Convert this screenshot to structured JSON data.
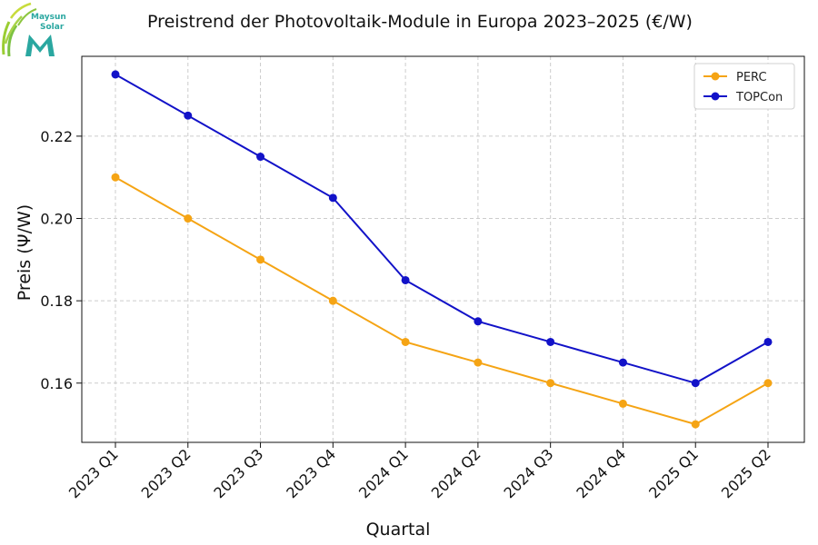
{
  "logo": {
    "line1": "Maysun",
    "line2": "Solar"
  },
  "chart_data": {
    "type": "line",
    "title": "Preistrend der Photovoltaik-Module in Europa 2023–2025 (€/W)",
    "xlabel": "Quartal",
    "ylabel": "Preis (Ψ/W)",
    "categories": [
      "2023 Q1",
      "2023 Q2",
      "2023 Q3",
      "2023 Q4",
      "2024 Q1",
      "2024 Q2",
      "2024 Q3",
      "2024 Q4",
      "2025 Q1",
      "2025 Q2"
    ],
    "series": [
      {
        "name": "PERC",
        "color": "#f5a414",
        "values": [
          0.21,
          0.2,
          0.19,
          0.18,
          0.17,
          0.165,
          0.16,
          0.155,
          0.15,
          0.16
        ]
      },
      {
        "name": "TOPCon",
        "color": "#1212c8",
        "values": [
          0.235,
          0.225,
          0.215,
          0.205,
          0.185,
          0.175,
          0.17,
          0.165,
          0.16,
          0.17
        ]
      }
    ],
    "ylim": [
      0.1456,
      0.2394
    ],
    "yticks": [
      "0.16",
      "0.18",
      "0.20",
      "0.22"
    ],
    "grid": true,
    "legend_position": "top-right"
  }
}
